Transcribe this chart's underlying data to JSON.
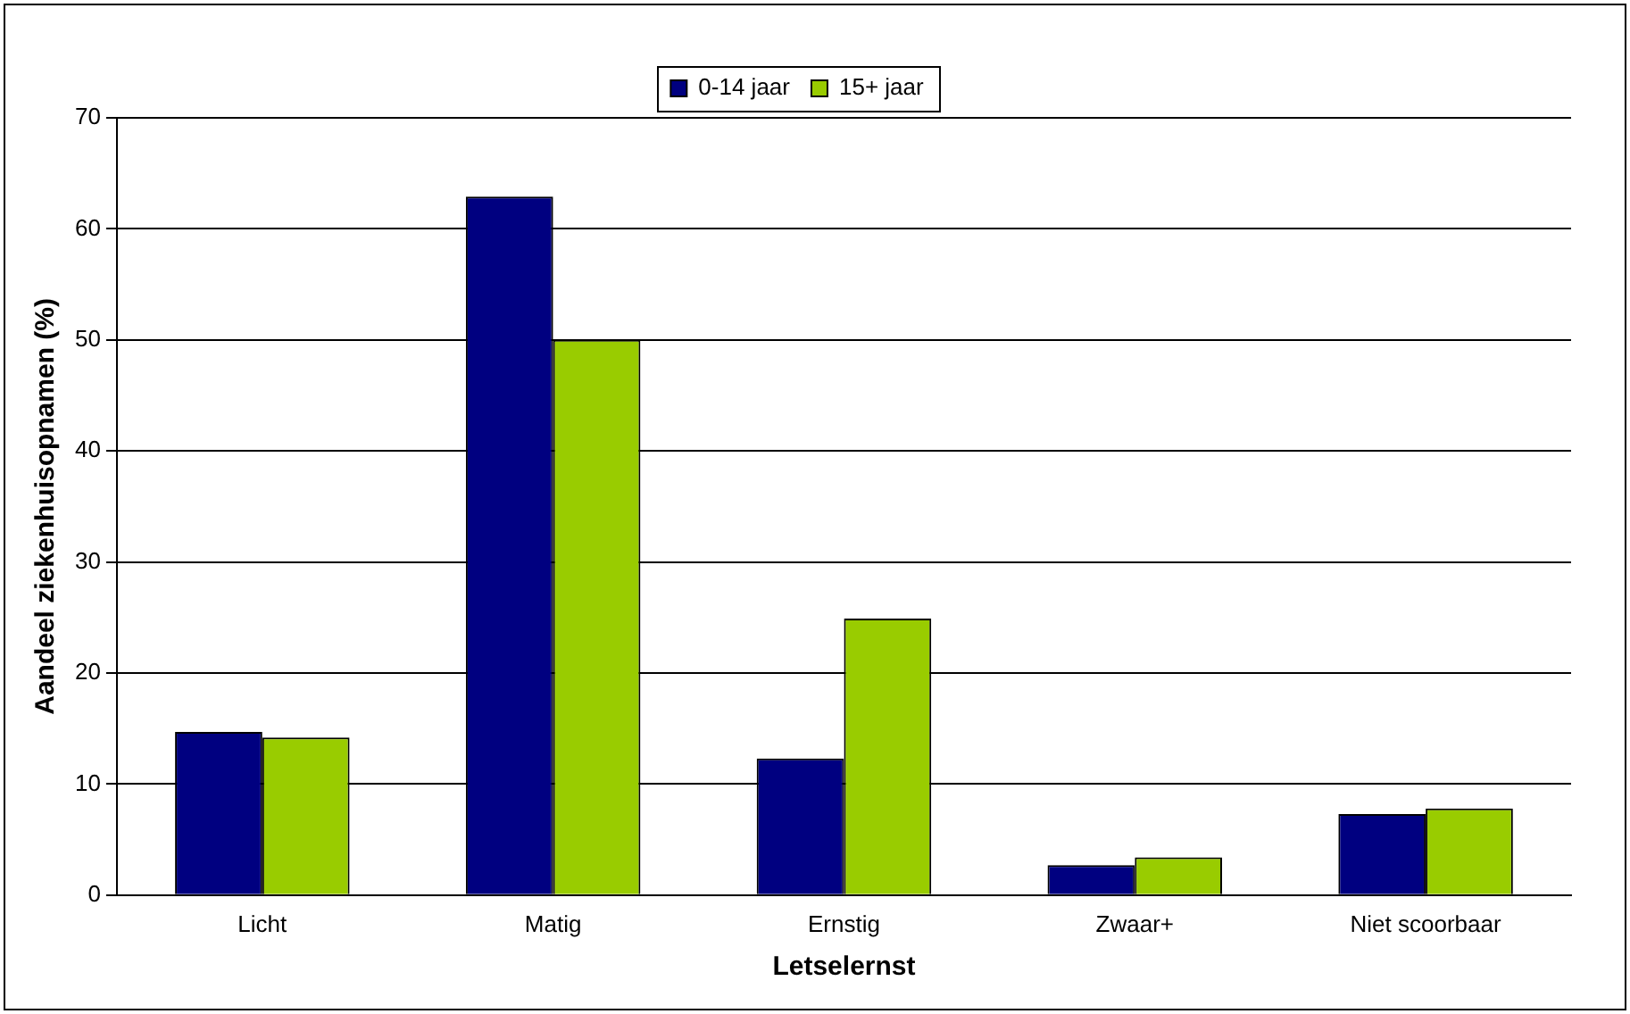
{
  "chart_data": {
    "type": "bar",
    "xlabel": "Letselernst",
    "ylabel": "Aandeel ziekenhuisopnamen (%)",
    "categories": [
      "Licht",
      "Matig",
      "Ernstig",
      "Zwaar+",
      "Niet scoorbaar"
    ],
    "series": [
      {
        "name": "0-14 jaar",
        "color": "#000080",
        "values": [
          14.7,
          62.9,
          12.3,
          2.7,
          7.3
        ]
      },
      {
        "name": "15+ jaar",
        "color": "#99cc00",
        "values": [
          14.2,
          50,
          24.9,
          3.4,
          7.8
        ]
      }
    ],
    "ylim": [
      0,
      70
    ],
    "yticks": [
      0,
      10,
      20,
      30,
      40,
      50,
      60,
      70
    ],
    "grid": "y",
    "legend": "top"
  }
}
